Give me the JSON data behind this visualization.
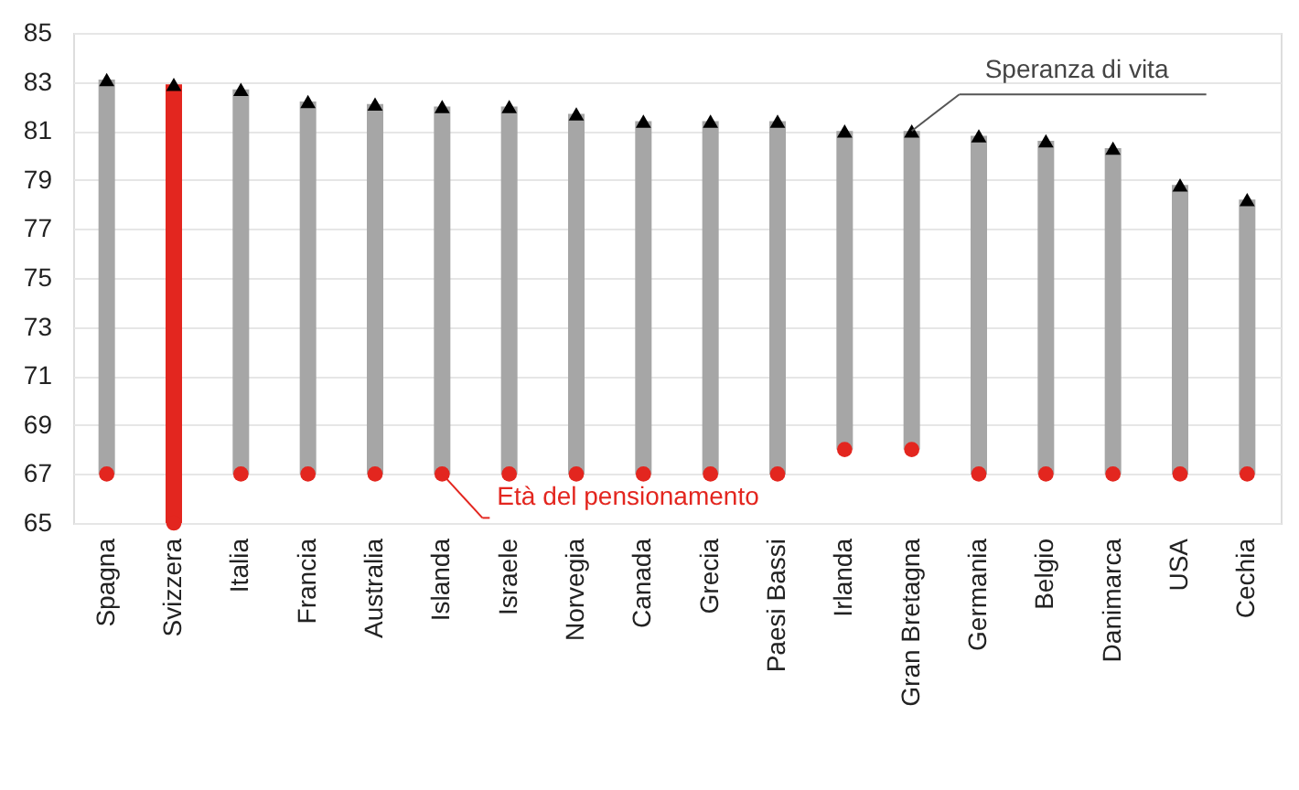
{
  "chart_data": {
    "type": "bar",
    "categories": [
      "Spagna",
      "Svizzera",
      "Italia",
      "Francia",
      "Australia",
      "Islanda",
      "Israele",
      "Norvegia",
      "Canada",
      "Grecia",
      "Paesi Bassi",
      "Irlanda",
      "Gran Bretagna",
      "Germania",
      "Belgio",
      "Danimarca",
      "USA",
      "Cechia"
    ],
    "series": [
      {
        "base": [
          67,
          65,
          67,
          67,
          67,
          67,
          67,
          67,
          67,
          67,
          67,
          68,
          68,
          67,
          67,
          67,
          67,
          67
        ],
        "values": [
          16.1,
          17.9,
          15.7,
          15.2,
          15.1,
          15.0,
          15.0,
          14.7,
          14.4,
          14.4,
          14.4,
          13.0,
          13.0,
          13.8,
          13.6,
          13.3,
          11.8,
          11.2
        ],
        "colors": [
          "#a6a6a6",
          "#e3261f",
          "#a6a6a6",
          "#a6a6a6",
          "#a6a6a6",
          "#a6a6a6",
          "#a6a6a6",
          "#a6a6a6",
          "#a6a6a6",
          "#a6a6a6",
          "#a6a6a6",
          "#a6a6a6",
          "#a6a6a6",
          "#a6a6a6",
          "#a6a6a6",
          "#a6a6a6",
          "#a6a6a6",
          "#a6a6a6"
        ]
      },
      {
        "type": "scatter",
        "marker": "triangle",
        "color": "#000000",
        "values": [
          83.1,
          82.9,
          82.7,
          82.2,
          82.1,
          82.0,
          82.0,
          81.7,
          81.4,
          81.4,
          81.4,
          81.0,
          81.0,
          80.8,
          80.6,
          80.3,
          78.8,
          78.2
        ]
      },
      {
        "type": "scatter",
        "marker": "circle",
        "color": "#e3261f",
        "values": [
          67,
          65,
          67,
          67,
          67,
          67,
          67,
          67,
          67,
          67,
          67,
          68,
          68,
          67,
          67,
          67,
          67,
          67
        ]
      }
    ],
    "ylim": [
      65,
      85
    ],
    "yticks": [
      65,
      67,
      69,
      71,
      73,
      75,
      77,
      79,
      81,
      83,
      85
    ],
    "grid": "y",
    "annotations": [
      {
        "text": "Speranza di vita",
        "x": "Gran Bretagna",
        "y": 81.0
      },
      {
        "text": "Età del pensionamento",
        "x": "Islanda",
        "y": 67
      }
    ]
  }
}
